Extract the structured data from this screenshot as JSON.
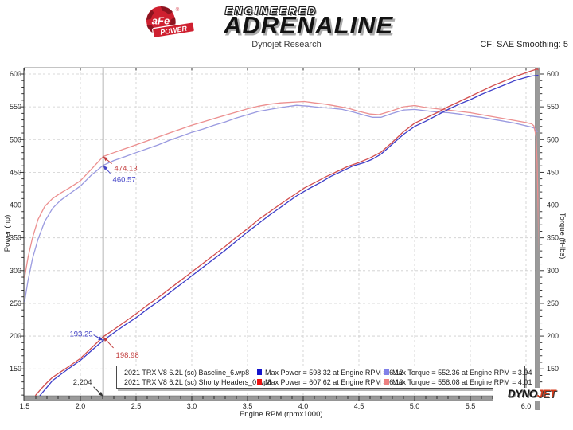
{
  "header": {
    "logo": {
      "circle_text": "aFe",
      "banner_text": "POWER",
      "reg": "®",
      "engineered": "ENGINEERED",
      "adrenaline": "ADRENALINE"
    },
    "subtitle": "Dynojet Research",
    "smoothing_label": "CF: SAE Smoothing: 5"
  },
  "footer_logo": {
    "part1": "DYNO",
    "part2": "JET"
  },
  "legend": {
    "rows": [
      {
        "name": "2021 TRX V8 6.2L (sc) Baseline_6.wp8",
        "power_color": "#1414cc",
        "power_text": "Max Power = 598.32 at Engine RPM = 6.12",
        "torque_color": "#8080e8",
        "torque_text": "Max Torque = 552.36 at Engine RPM = 3.94"
      },
      {
        "name": "2021 TRX V8 6.2L (sc) Shorty Headers_0.wp8",
        "power_color": "#ee1111",
        "power_text": "Max Power = 607.62 at Engine RPM = 6.10",
        "torque_color": "#ec8080",
        "torque_text": "Max Torque = 558.08 at Engine RPM = 4.01"
      }
    ]
  },
  "chart_data": {
    "type": "line",
    "title": "",
    "xlabel": "Engine RPM (rpmx1000)",
    "ylabel_left": "Power (hp)",
    "ylabel_right": "Torque (ft-lbs)",
    "xlim": [
      1.5,
      6.1
    ],
    "ylim": [
      107,
      610
    ],
    "grid": true,
    "legend_position": "bottom-inside",
    "x_major_ticks": [
      1.5,
      2.0,
      2.5,
      3.0,
      3.5,
      4.0,
      4.5,
      5.0,
      5.5,
      6.0
    ],
    "x_minor_step": 0.1,
    "y_major_ticks": [
      150,
      200,
      250,
      300,
      350,
      400,
      450,
      500,
      550,
      600
    ],
    "y_minor_step": 10,
    "cursor": {
      "rpm": 2.204,
      "label": "2,204",
      "values": {
        "torque_shorty": 474.13,
        "torque_baseline": 460.57,
        "power_shorty": 198.98,
        "power_baseline": 193.29
      }
    },
    "series": [
      {
        "id": "torque-baseline",
        "name": "Baseline Torque",
        "unit": "ft-lbs",
        "color": "#9a9ae0",
        "max": {
          "value": 552.36,
          "rpm": 3.94
        },
        "points": [
          [
            1.5,
            253
          ],
          [
            1.53,
            285
          ],
          [
            1.57,
            318
          ],
          [
            1.62,
            348
          ],
          [
            1.68,
            375
          ],
          [
            1.75,
            395
          ],
          [
            1.82,
            407
          ],
          [
            1.9,
            417
          ],
          [
            2.0,
            429
          ],
          [
            2.1,
            446
          ],
          [
            2.204,
            460.57
          ],
          [
            2.3,
            468
          ],
          [
            2.4,
            474
          ],
          [
            2.5,
            480
          ],
          [
            2.6,
            486
          ],
          [
            2.7,
            492
          ],
          [
            2.8,
            499
          ],
          [
            2.9,
            505
          ],
          [
            3.0,
            511
          ],
          [
            3.1,
            516
          ],
          [
            3.2,
            522
          ],
          [
            3.3,
            527
          ],
          [
            3.4,
            533
          ],
          [
            3.5,
            538
          ],
          [
            3.6,
            543
          ],
          [
            3.7,
            546
          ],
          [
            3.8,
            549
          ],
          [
            3.94,
            552.36
          ],
          [
            4.05,
            551
          ],
          [
            4.15,
            549
          ],
          [
            4.25,
            548
          ],
          [
            4.35,
            546
          ],
          [
            4.45,
            542
          ],
          [
            4.55,
            537
          ],
          [
            4.62,
            534
          ],
          [
            4.7,
            534
          ],
          [
            4.8,
            540
          ],
          [
            4.9,
            545
          ],
          [
            5.0,
            546
          ],
          [
            5.1,
            544
          ],
          [
            5.2,
            542
          ],
          [
            5.3,
            541
          ],
          [
            5.4,
            539
          ],
          [
            5.5,
            536
          ],
          [
            5.6,
            534
          ],
          [
            5.7,
            531
          ],
          [
            5.8,
            528
          ],
          [
            5.9,
            525
          ],
          [
            6.0,
            521
          ],
          [
            6.05,
            519
          ],
          [
            6.08,
            517
          ],
          [
            6.1,
            512
          ]
        ]
      },
      {
        "id": "torque-shorty",
        "name": "Shorty Headers Torque",
        "unit": "ft-lbs",
        "color": "#ec8f8f",
        "max": {
          "value": 558.08,
          "rpm": 4.01
        },
        "points": [
          [
            1.5,
            290
          ],
          [
            1.53,
            320
          ],
          [
            1.57,
            350
          ],
          [
            1.62,
            378
          ],
          [
            1.68,
            398
          ],
          [
            1.75,
            410
          ],
          [
            1.82,
            418
          ],
          [
            1.9,
            426
          ],
          [
            2.0,
            437
          ],
          [
            2.1,
            455
          ],
          [
            2.204,
            474.13
          ],
          [
            2.3,
            480
          ],
          [
            2.4,
            486
          ],
          [
            2.5,
            492
          ],
          [
            2.6,
            498
          ],
          [
            2.7,
            504
          ],
          [
            2.8,
            510
          ],
          [
            2.9,
            516
          ],
          [
            3.0,
            522
          ],
          [
            3.1,
            527
          ],
          [
            3.2,
            532
          ],
          [
            3.3,
            537
          ],
          [
            3.4,
            542
          ],
          [
            3.5,
            547
          ],
          [
            3.6,
            551
          ],
          [
            3.7,
            554
          ],
          [
            3.8,
            556
          ],
          [
            4.01,
            558.08
          ],
          [
            4.1,
            556
          ],
          [
            4.2,
            554
          ],
          [
            4.3,
            551
          ],
          [
            4.4,
            548
          ],
          [
            4.5,
            543
          ],
          [
            4.6,
            539
          ],
          [
            4.68,
            538
          ],
          [
            4.78,
            543
          ],
          [
            4.9,
            550
          ],
          [
            5.0,
            552
          ],
          [
            5.1,
            549
          ],
          [
            5.2,
            547
          ],
          [
            5.3,
            545
          ],
          [
            5.4,
            543
          ],
          [
            5.5,
            541
          ],
          [
            5.6,
            538
          ],
          [
            5.7,
            535
          ],
          [
            5.8,
            532
          ],
          [
            5.9,
            529
          ],
          [
            6.0,
            526
          ],
          [
            6.05,
            524
          ],
          [
            6.07,
            521
          ],
          [
            6.09,
            505
          ],
          [
            6.1,
            460
          ],
          [
            6.11,
            380
          ],
          [
            6.12,
            278
          ]
        ]
      },
      {
        "id": "power-baseline",
        "name": "Baseline Power",
        "unit": "hp",
        "color": "#3c3cc8",
        "max": {
          "value": 598.32,
          "rpm": 6.12
        },
        "points": [
          [
            1.56,
            95
          ],
          [
            1.6,
            101
          ],
          [
            1.65,
            112
          ],
          [
            1.7,
            122
          ],
          [
            1.75,
            132
          ],
          [
            1.82,
            141
          ],
          [
            1.9,
            151
          ],
          [
            2.0,
            163
          ],
          [
            2.1,
            178
          ],
          [
            2.204,
            193.29
          ],
          [
            2.3,
            205
          ],
          [
            2.4,
            217
          ],
          [
            2.5,
            228
          ],
          [
            2.6,
            241
          ],
          [
            2.7,
            253
          ],
          [
            2.8,
            266
          ],
          [
            2.9,
            279
          ],
          [
            3.0,
            292
          ],
          [
            3.1,
            305
          ],
          [
            3.2,
            318
          ],
          [
            3.3,
            331
          ],
          [
            3.4,
            345
          ],
          [
            3.5,
            359
          ],
          [
            3.6,
            372
          ],
          [
            3.7,
            385
          ],
          [
            3.8,
            397
          ],
          [
            3.94,
            414
          ],
          [
            4.05,
            425
          ],
          [
            4.15,
            434
          ],
          [
            4.25,
            444
          ],
          [
            4.35,
            452
          ],
          [
            4.45,
            460
          ],
          [
            4.55,
            465
          ],
          [
            4.62,
            470
          ],
          [
            4.7,
            478
          ],
          [
            4.8,
            493
          ],
          [
            4.9,
            508
          ],
          [
            5.0,
            520
          ],
          [
            5.1,
            528
          ],
          [
            5.2,
            537
          ],
          [
            5.3,
            546
          ],
          [
            5.4,
            554
          ],
          [
            5.5,
            561
          ],
          [
            5.6,
            569
          ],
          [
            5.7,
            576
          ],
          [
            5.8,
            583
          ],
          [
            5.9,
            590
          ],
          [
            6.0,
            595
          ],
          [
            6.05,
            597
          ],
          [
            6.12,
            598.32
          ],
          [
            6.14,
            597
          ]
        ]
      },
      {
        "id": "power-shorty",
        "name": "Shorty Headers Power",
        "unit": "hp",
        "color": "#d24e4e",
        "max": {
          "value": 607.62,
          "rpm": 6.1
        },
        "points": [
          [
            1.54,
            94
          ],
          [
            1.6,
            110
          ],
          [
            1.65,
            120
          ],
          [
            1.7,
            129
          ],
          [
            1.75,
            137
          ],
          [
            1.82,
            145
          ],
          [
            1.9,
            154
          ],
          [
            2.0,
            166
          ],
          [
            2.1,
            182
          ],
          [
            2.204,
            198.98
          ],
          [
            2.3,
            210
          ],
          [
            2.4,
            222
          ],
          [
            2.5,
            234
          ],
          [
            2.6,
            247
          ],
          [
            2.7,
            259
          ],
          [
            2.8,
            272
          ],
          [
            2.9,
            285
          ],
          [
            3.0,
            298
          ],
          [
            3.1,
            311
          ],
          [
            3.2,
            324
          ],
          [
            3.3,
            337
          ],
          [
            3.4,
            351
          ],
          [
            3.5,
            364
          ],
          [
            3.6,
            378
          ],
          [
            3.7,
            390
          ],
          [
            3.8,
            402
          ],
          [
            4.01,
            426
          ],
          [
            4.1,
            434
          ],
          [
            4.2,
            443
          ],
          [
            4.3,
            451
          ],
          [
            4.4,
            459
          ],
          [
            4.5,
            465
          ],
          [
            4.6,
            472
          ],
          [
            4.7,
            481
          ],
          [
            4.8,
            496
          ],
          [
            4.9,
            512
          ],
          [
            5.0,
            525
          ],
          [
            5.1,
            533
          ],
          [
            5.2,
            541
          ],
          [
            5.3,
            550
          ],
          [
            5.4,
            558
          ],
          [
            5.5,
            566
          ],
          [
            5.6,
            574
          ],
          [
            5.7,
            582
          ],
          [
            5.8,
            589
          ],
          [
            5.9,
            596
          ],
          [
            6.0,
            602
          ],
          [
            6.05,
            605
          ],
          [
            6.1,
            607.62
          ],
          [
            6.13,
            604
          ]
        ]
      }
    ],
    "annotations": [
      {
        "text": "474.13",
        "color": "#c23b3b",
        "rpm": 2.204,
        "value": 474.13,
        "tail": [
          11,
          9
        ],
        "text_offset": [
          14,
          18
        ],
        "anchor": "start"
      },
      {
        "text": "460.57",
        "color": "#4646c8",
        "rpm": 2.204,
        "value": 460.57,
        "tail": [
          9,
          10
        ],
        "text_offset": [
          12,
          21
        ],
        "anchor": "start"
      },
      {
        "text": "193.29",
        "color": "#3b3bc2",
        "rpm": 2.204,
        "value": 193.29,
        "tail": [
          -12,
          -7
        ],
        "text_offset": [
          -13,
          -5
        ],
        "anchor": "end"
      },
      {
        "text": "198.98",
        "color": "#c23b3b",
        "rpm": 2.204,
        "value": 198.98,
        "tail": [
          13,
          14
        ],
        "text_offset": [
          16,
          26
        ],
        "anchor": "start"
      },
      {
        "text": "2,204",
        "color": "#333333",
        "rpm": 2.204,
        "value": 108,
        "tail": [
          -12,
          -12
        ],
        "text_offset": [
          -14,
          -15
        ],
        "anchor": "end"
      }
    ]
  }
}
